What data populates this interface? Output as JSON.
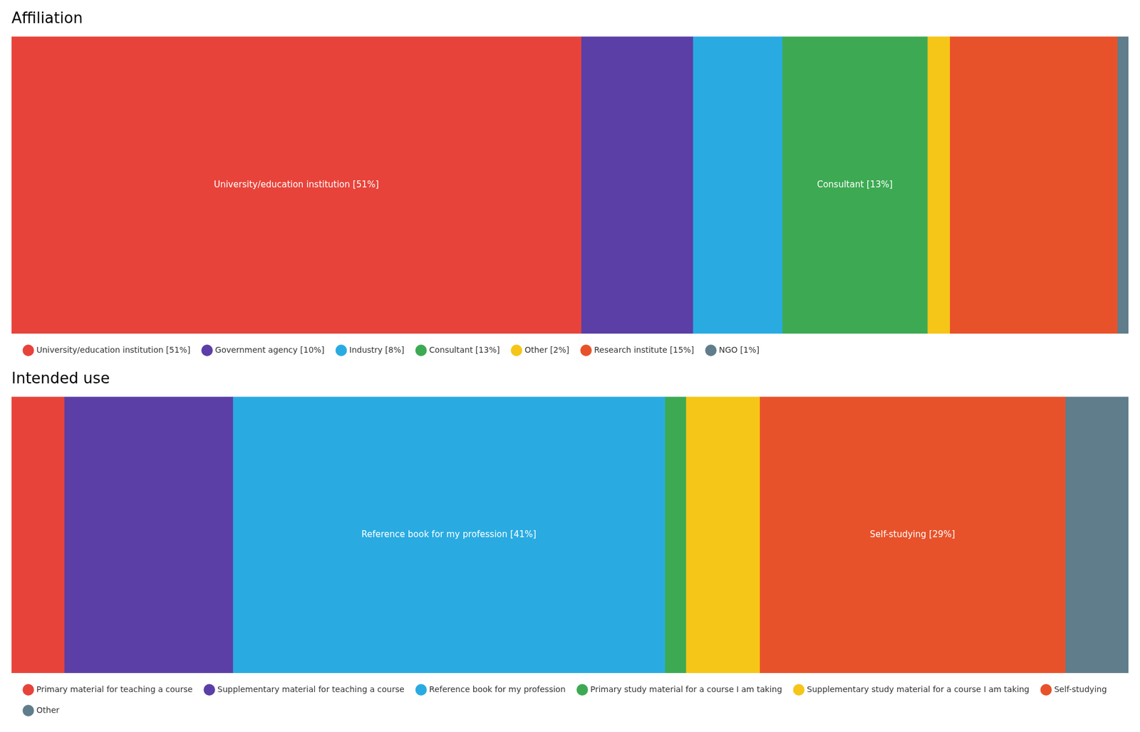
{
  "chart_data": [
    {
      "type": "bar",
      "title": "Affiliation",
      "orientation": "horizontal",
      "stacked": true,
      "categories": [
        null
      ],
      "xlim": [
        0,
        100
      ],
      "tick_labels": false,
      "grid": false,
      "legend": "bottom",
      "series": [
        {
          "name": "University/education institution [51%]",
          "color": "#E8433A",
          "values": [
            51
          ],
          "value_labels": [
            "University/education institution [51%]"
          ]
        },
        {
          "name": "Government agency [10%]",
          "color": "#5B3FA6",
          "values": [
            10
          ]
        },
        {
          "name": "Industry [8%]",
          "color": "#29ABE2",
          "values": [
            8
          ]
        },
        {
          "name": "Consultant [13%]",
          "color": "#3DAA53",
          "values": [
            13
          ],
          "value_labels": [
            "Consultant [13%]"
          ]
        },
        {
          "name": "Other [2%]",
          "color": "#F5C518",
          "values": [
            2
          ]
        },
        {
          "name": "Research institute [15%]",
          "color": "#E8522A",
          "values": [
            15
          ]
        },
        {
          "name": "NGO [1%]",
          "color": "#607D8B",
          "values": [
            1
          ]
        }
      ]
    },
    {
      "type": "bar",
      "title": "Intended use",
      "orientation": "horizontal",
      "stacked": true,
      "categories": [
        null
      ],
      "xlim": [
        0,
        106
      ],
      "tick_labels": false,
      "grid": false,
      "legend": "bottom",
      "series": [
        {
          "name": "Primary material for teaching a course",
          "color": "#E8433A",
          "values": [
            5
          ]
        },
        {
          "name": "Supplementary material for teaching a course",
          "color": "#5B3FA6",
          "values": [
            16
          ]
        },
        {
          "name": "Reference book for my profession",
          "color": "#29ABE2",
          "values": [
            41
          ],
          "value_labels": [
            "Reference book for my profession [41%]"
          ]
        },
        {
          "name": "Primary study material for a course I am taking",
          "color": "#3DAA53",
          "values": [
            2
          ]
        },
        {
          "name": "Supplementary study material for a course I am taking",
          "color": "#F5C518",
          "values": [
            7
          ]
        },
        {
          "name": "Self-studying",
          "color": "#E8522A",
          "values": [
            29
          ],
          "value_labels": [
            "Self-studying [29%]"
          ]
        },
        {
          "name": "Other",
          "color": "#607D8B",
          "values": [
            6
          ]
        }
      ]
    }
  ]
}
